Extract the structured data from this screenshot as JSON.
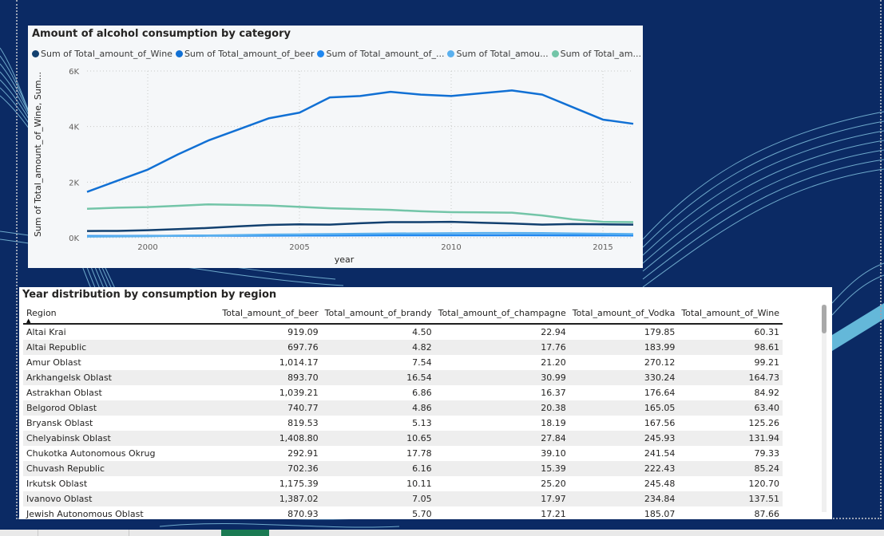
{
  "chart_data": {
    "type": "line",
    "title": "Amount of alcohol consumption by category",
    "xlabel": "year",
    "ylabel": "Sum of Total_amount_of_Wine, Sum...",
    "x_ticks": [
      2000,
      2005,
      2010,
      2015
    ],
    "y_ticks": [
      "0K",
      "2K",
      "4K",
      "6K"
    ],
    "xlim": [
      1998,
      2016
    ],
    "ylim": [
      0,
      6000
    ],
    "grid": true,
    "legend_position": "top",
    "x": [
      1998,
      1999,
      2000,
      2001,
      2002,
      2003,
      2004,
      2005,
      2006,
      2007,
      2008,
      2009,
      2010,
      2011,
      2012,
      2013,
      2014,
      2015,
      2016
    ],
    "series": [
      {
        "name": "Sum of Total_amount_of_Wine",
        "color": "#12406f",
        "values": [
          240,
          245,
          270,
          310,
          350,
          410,
          460,
          480,
          470,
          520,
          560,
          560,
          570,
          540,
          510,
          470,
          490,
          480,
          470
        ]
      },
      {
        "name": "Sum of Total_amount_of_beer",
        "color": "#1170d4",
        "values": [
          1650,
          2050,
          2450,
          3000,
          3500,
          3900,
          4300,
          4500,
          5050,
          5100,
          5250,
          5150,
          5100,
          5200,
          5300,
          5150,
          4700,
          4250,
          4100
        ]
      },
      {
        "name": "Sum of Total_amount_of_...",
        "color": "#1f87f0",
        "values": [
          60,
          62,
          65,
          68,
          70,
          72,
          75,
          78,
          80,
          82,
          85,
          85,
          86,
          86,
          88,
          86,
          84,
          82,
          80
        ]
      },
      {
        "name": "Sum of Total_amou...",
        "color": "#5ab0ee",
        "values": [
          40,
          45,
          55,
          70,
          80,
          95,
          110,
          120,
          130,
          140,
          150,
          155,
          160,
          170,
          170,
          165,
          150,
          140,
          130
        ]
      },
      {
        "name": "Sum of Total_am...",
        "color": "#73c5a8",
        "values": [
          1040,
          1080,
          1100,
          1150,
          1200,
          1180,
          1160,
          1110,
          1060,
          1030,
          1000,
          950,
          920,
          910,
          900,
          800,
          660,
          570,
          560
        ]
      }
    ]
  },
  "colors": {
    "background": "#0b2a64",
    "accent": "#1170d4"
  },
  "table": {
    "title": "Year distribution by consumption by region",
    "columns": [
      "Region",
      "Total_amount_of_beer",
      "Total_amount_of_brandy",
      "Total_amount_of_champagne",
      "Total_amount_of_Vodka",
      "Total_amount_of_Wine"
    ],
    "rows": [
      [
        "Altai Krai",
        "919.09",
        "4.50",
        "22.94",
        "179.85",
        "60.31"
      ],
      [
        "Altai Republic",
        "697.76",
        "4.82",
        "17.76",
        "183.99",
        "98.61"
      ],
      [
        "Amur Oblast",
        "1,014.17",
        "7.54",
        "21.20",
        "270.12",
        "99.21"
      ],
      [
        "Arkhangelsk Oblast",
        "893.70",
        "16.54",
        "30.99",
        "330.24",
        "164.73"
      ],
      [
        "Astrakhan Oblast",
        "1,039.21",
        "6.86",
        "16.37",
        "176.64",
        "84.92"
      ],
      [
        "Belgorod Oblast",
        "740.77",
        "4.86",
        "20.38",
        "165.05",
        "63.40"
      ],
      [
        "Bryansk Oblast",
        "819.53",
        "5.13",
        "18.19",
        "167.56",
        "125.26"
      ],
      [
        "Chelyabinsk Oblast",
        "1,408.80",
        "10.65",
        "27.84",
        "245.93",
        "131.94"
      ],
      [
        "Chukotka Autonomous Okrug",
        "292.91",
        "17.78",
        "39.10",
        "241.54",
        "79.33"
      ],
      [
        "Chuvash Republic",
        "702.36",
        "6.16",
        "15.39",
        "222.43",
        "85.24"
      ],
      [
        "Irkutsk Oblast",
        "1,175.39",
        "10.11",
        "25.20",
        "245.48",
        "120.70"
      ],
      [
        "Ivanovo Oblast",
        "1,387.02",
        "7.05",
        "17.97",
        "234.84",
        "137.51"
      ],
      [
        "Jewish Autonomous Oblast",
        "870.93",
        "5.70",
        "17.21",
        "185.07",
        "87.66"
      ]
    ]
  }
}
